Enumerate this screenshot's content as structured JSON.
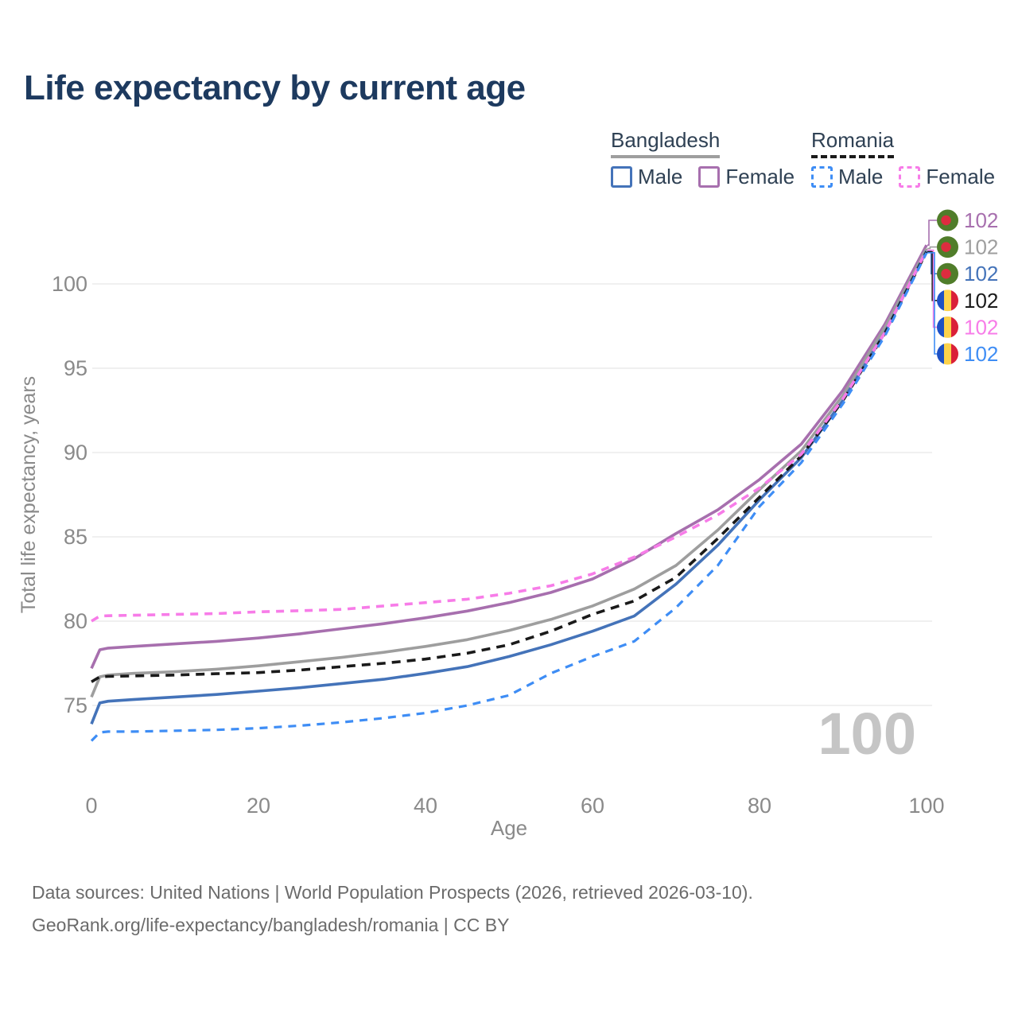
{
  "page": {
    "title": "Life expectancy by current age"
  },
  "legend": {
    "groups": [
      {
        "country": "Bangladesh",
        "line_style": "solid",
        "line_color": "#9e9e9e",
        "items": [
          {
            "label": "Male",
            "color": "#4473b9"
          },
          {
            "label": "Female",
            "color": "#a76fae"
          }
        ]
      },
      {
        "country": "Romania",
        "line_style": "dashed",
        "line_color": "#1a1a1a",
        "items": [
          {
            "label": "Male",
            "color": "#3e8df5"
          },
          {
            "label": "Female",
            "color": "#f77ce8"
          }
        ]
      }
    ]
  },
  "chart_data": {
    "type": "line",
    "title": "Life expectancy by current age",
    "xlabel": "Age",
    "ylabel": "Total life expectancy, years",
    "xlim": [
      0,
      100
    ],
    "ylim": [
      72.5,
      103
    ],
    "xticks": [
      0,
      20,
      40,
      60,
      80,
      100
    ],
    "yticks": [
      75,
      80,
      85,
      90,
      95,
      100
    ],
    "grid": true,
    "legend_position": "top-right",
    "active_age_label": "100",
    "series": [
      {
        "name": "Bangladesh Female",
        "country": "Bangladesh",
        "sex": "Female",
        "flag": "bangladesh-flag-icon",
        "color": "#a76fae",
        "dash": null,
        "width": 3.6,
        "end_label": "102",
        "points": [
          [
            0,
            77.2
          ],
          [
            1,
            78.3
          ],
          [
            2,
            78.4
          ],
          [
            5,
            78.5
          ],
          [
            10,
            78.65
          ],
          [
            15,
            78.8
          ],
          [
            20,
            79.0
          ],
          [
            25,
            79.25
          ],
          [
            30,
            79.55
          ],
          [
            35,
            79.85
          ],
          [
            40,
            80.2
          ],
          [
            45,
            80.6
          ],
          [
            50,
            81.1
          ],
          [
            55,
            81.7
          ],
          [
            60,
            82.5
          ],
          [
            65,
            83.7
          ],
          [
            70,
            85.2
          ],
          [
            75,
            86.6
          ],
          [
            80,
            88.4
          ],
          [
            85,
            90.5
          ],
          [
            90,
            93.7
          ],
          [
            95,
            97.6
          ],
          [
            100,
            102.3
          ]
        ]
      },
      {
        "name": "Bangladesh",
        "country": "Bangladesh",
        "sex": "Both",
        "flag": "bangladesh-flag-icon",
        "color": "#9e9e9e",
        "dash": null,
        "width": 3.6,
        "end_label": "102",
        "points": [
          [
            0,
            75.5
          ],
          [
            1,
            76.7
          ],
          [
            2,
            76.8
          ],
          [
            5,
            76.9
          ],
          [
            10,
            77.0
          ],
          [
            15,
            77.15
          ],
          [
            20,
            77.35
          ],
          [
            25,
            77.6
          ],
          [
            30,
            77.85
          ],
          [
            35,
            78.15
          ],
          [
            40,
            78.5
          ],
          [
            45,
            78.9
          ],
          [
            50,
            79.45
          ],
          [
            55,
            80.1
          ],
          [
            60,
            80.9
          ],
          [
            65,
            81.9
          ],
          [
            70,
            83.3
          ],
          [
            75,
            85.4
          ],
          [
            80,
            87.8
          ],
          [
            85,
            90.1
          ],
          [
            90,
            93.4
          ],
          [
            95,
            97.4
          ],
          [
            100,
            102.1
          ]
        ]
      },
      {
        "name": "Bangladesh Male",
        "country": "Bangladesh",
        "sex": "Male",
        "flag": "bangladesh-flag-icon",
        "color": "#4473b9",
        "dash": null,
        "width": 3.6,
        "end_label": "102",
        "points": [
          [
            0,
            73.9
          ],
          [
            1,
            75.15
          ],
          [
            2,
            75.25
          ],
          [
            5,
            75.35
          ],
          [
            10,
            75.5
          ],
          [
            15,
            75.65
          ],
          [
            20,
            75.85
          ],
          [
            25,
            76.05
          ],
          [
            30,
            76.3
          ],
          [
            35,
            76.55
          ],
          [
            40,
            76.9
          ],
          [
            45,
            77.3
          ],
          [
            50,
            77.9
          ],
          [
            55,
            78.6
          ],
          [
            60,
            79.4
          ],
          [
            65,
            80.3
          ],
          [
            70,
            82.2
          ],
          [
            75,
            84.5
          ],
          [
            80,
            87.2
          ],
          [
            85,
            89.7
          ],
          [
            90,
            93.1
          ],
          [
            95,
            97.1
          ],
          [
            100,
            101.95
          ]
        ]
      },
      {
        "name": "Romania",
        "country": "Romania",
        "sex": "Both",
        "flag": "romania-flag-icon",
        "color": "#1a1a1a",
        "dash": "11 8",
        "width": 3.6,
        "end_label": "102",
        "points": [
          [
            0,
            76.4
          ],
          [
            1,
            76.7
          ],
          [
            2,
            76.72
          ],
          [
            5,
            76.75
          ],
          [
            10,
            76.8
          ],
          [
            15,
            76.88
          ],
          [
            20,
            76.95
          ],
          [
            25,
            77.1
          ],
          [
            30,
            77.3
          ],
          [
            35,
            77.5
          ],
          [
            40,
            77.75
          ],
          [
            45,
            78.1
          ],
          [
            50,
            78.6
          ],
          [
            55,
            79.4
          ],
          [
            60,
            80.4
          ],
          [
            65,
            81.2
          ],
          [
            70,
            82.6
          ],
          [
            75,
            84.9
          ],
          [
            80,
            87.35
          ],
          [
            85,
            89.8
          ],
          [
            90,
            93.1
          ],
          [
            95,
            97.05
          ],
          [
            100,
            101.9
          ]
        ]
      },
      {
        "name": "Romania Female",
        "country": "Romania",
        "sex": "Female",
        "flag": "romania-flag-icon",
        "color": "#f77ce8",
        "dash": "10 8",
        "width": 3.6,
        "end_label": "102",
        "points": [
          [
            0,
            80.0
          ],
          [
            1,
            80.3
          ],
          [
            2,
            80.32
          ],
          [
            5,
            80.35
          ],
          [
            10,
            80.4
          ],
          [
            15,
            80.45
          ],
          [
            20,
            80.55
          ],
          [
            25,
            80.62
          ],
          [
            30,
            80.7
          ],
          [
            35,
            80.9
          ],
          [
            40,
            81.1
          ],
          [
            45,
            81.3
          ],
          [
            50,
            81.65
          ],
          [
            55,
            82.1
          ],
          [
            60,
            82.8
          ],
          [
            65,
            83.8
          ],
          [
            70,
            85.0
          ],
          [
            75,
            86.3
          ],
          [
            80,
            87.9
          ],
          [
            85,
            89.9
          ],
          [
            90,
            93.2
          ],
          [
            95,
            97.1
          ],
          [
            100,
            102.0
          ]
        ]
      },
      {
        "name": "Romania Male",
        "country": "Romania",
        "sex": "Male",
        "flag": "romania-flag-icon",
        "color": "#3e8df5",
        "dash": "10 8",
        "width": 3.2,
        "end_label": "102",
        "points": [
          [
            0,
            72.9
          ],
          [
            1,
            73.4
          ],
          [
            2,
            73.45
          ],
          [
            5,
            73.45
          ],
          [
            10,
            73.5
          ],
          [
            15,
            73.55
          ],
          [
            20,
            73.65
          ],
          [
            25,
            73.8
          ],
          [
            30,
            74.0
          ],
          [
            35,
            74.25
          ],
          [
            40,
            74.55
          ],
          [
            45,
            75.0
          ],
          [
            50,
            75.6
          ],
          [
            55,
            76.9
          ],
          [
            60,
            77.9
          ],
          [
            65,
            78.8
          ],
          [
            70,
            80.8
          ],
          [
            75,
            83.3
          ],
          [
            80,
            86.8
          ],
          [
            85,
            89.4
          ],
          [
            90,
            92.9
          ],
          [
            95,
            96.9
          ],
          [
            100,
            101.85
          ]
        ]
      }
    ]
  },
  "flag_colors": {
    "bangladesh_green": "#507d2a",
    "bangladesh_red": "#dd2c3f",
    "romania_blue": "#1d50c4",
    "romania_yellow": "#fcd24b",
    "romania_red": "#da2038"
  },
  "colors": {
    "title": "#1d3a5f",
    "legend_text": "#2f4154",
    "axis_text": "#8a8a8a",
    "grid": "#ebebeb",
    "watermark": "#c5c5c5",
    "footer": "#6b6b6b"
  },
  "footer": {
    "line1": "Data sources: United Nations | World Population Prospects (2026, retrieved 2026-03-10).",
    "line2": "GeoRank.org/life-expectancy/bangladesh/romania | CC BY"
  }
}
